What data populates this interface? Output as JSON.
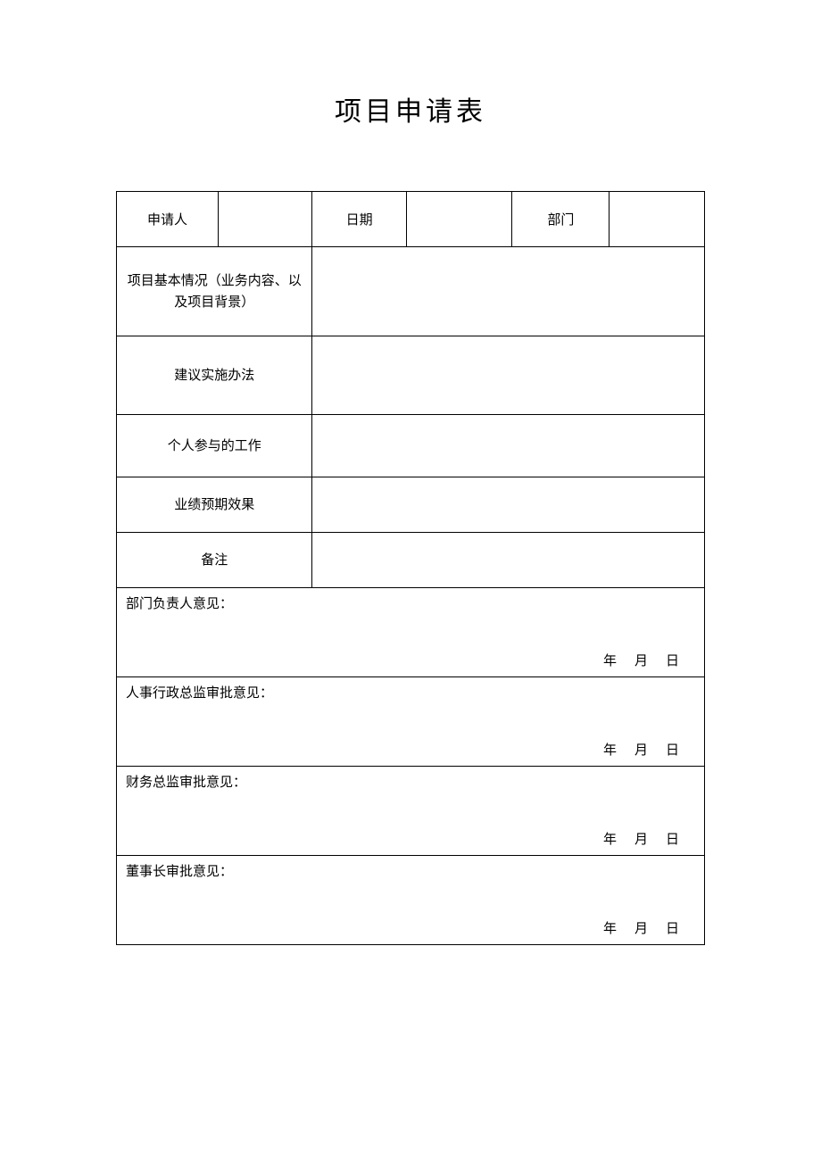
{
  "document": {
    "title": "项目申请表",
    "background_color": "#ffffff",
    "text_color": "#000000",
    "border_color": "#000000",
    "title_fontsize": 30,
    "body_fontsize": 15
  },
  "header": {
    "applicant_label": "申请人",
    "applicant_value": "",
    "date_label": "日期",
    "date_value": "",
    "department_label": "部门",
    "department_value": ""
  },
  "sections": {
    "basic_info_label": "项目基本情况（业务内容、以及项目背景）",
    "basic_info_value": "",
    "method_label": "建议实施办法",
    "method_value": "",
    "personal_work_label": "个人参与的工作",
    "personal_work_value": "",
    "expected_result_label": "业绩预期效果",
    "expected_result_value": "",
    "note_label": "备注",
    "note_value": ""
  },
  "opinions": {
    "dept_head": {
      "label": "部门负责人意见：",
      "year": "年",
      "month": "月",
      "day": "日"
    },
    "hr_director": {
      "label": "人事行政总监审批意见：",
      "year": "年",
      "month": "月",
      "day": "日"
    },
    "finance_director": {
      "label": "财务总监审批意见：",
      "year": "年",
      "month": "月",
      "day": "日"
    },
    "chairman": {
      "label": "董事长审批意见：",
      "year": "年",
      "month": "月",
      "day": "日"
    }
  }
}
